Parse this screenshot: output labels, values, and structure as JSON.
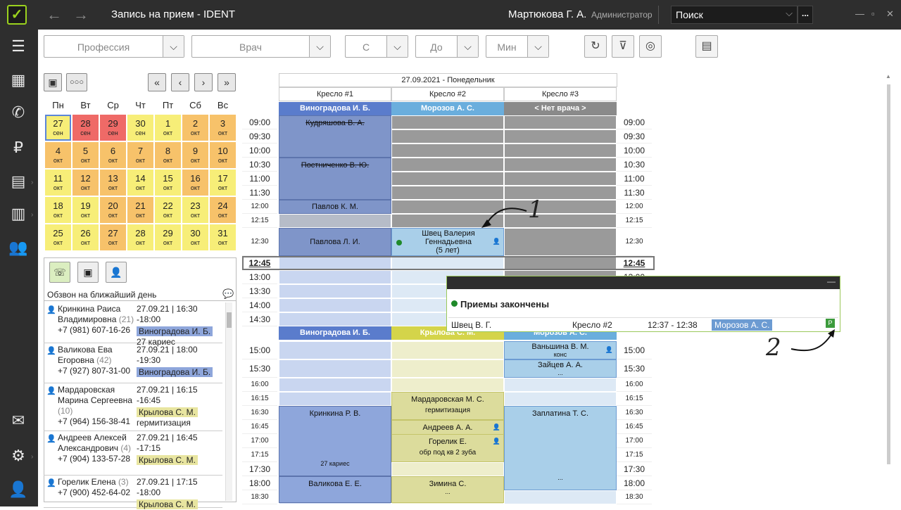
{
  "titlebar": {
    "title": "Запись на прием  -  IDENT",
    "user": "Мартюкова Г. А.",
    "role": "Администратор",
    "search": "Поиск",
    "dots": "..."
  },
  "filters": {
    "profession": "Профессия",
    "doctor": "Врач",
    "from": "С",
    "to": "До",
    "min": "Мин"
  },
  "calendar": {
    "weekdays": [
      "Пн",
      "Вт",
      "Ср",
      "Чт",
      "Пт",
      "Сб",
      "Вс"
    ],
    "days": [
      {
        "d": "27",
        "m": "сен",
        "c": "y"
      },
      {
        "d": "28",
        "m": "сен",
        "c": "r"
      },
      {
        "d": "29",
        "m": "сен",
        "c": "r"
      },
      {
        "d": "30",
        "m": "сен",
        "c": "y"
      },
      {
        "d": "1",
        "m": "окт",
        "c": "y"
      },
      {
        "d": "2",
        "m": "окт",
        "c": "o"
      },
      {
        "d": "3",
        "m": "окт",
        "c": "o"
      },
      {
        "d": "4",
        "m": "окт",
        "c": "o"
      },
      {
        "d": "5",
        "m": "окт",
        "c": "o"
      },
      {
        "d": "6",
        "m": "окт",
        "c": "o"
      },
      {
        "d": "7",
        "m": "окт",
        "c": "o"
      },
      {
        "d": "8",
        "m": "окт",
        "c": "o"
      },
      {
        "d": "9",
        "m": "окт",
        "c": "o"
      },
      {
        "d": "10",
        "m": "окт",
        "c": "o"
      },
      {
        "d": "11",
        "m": "окт",
        "c": "y"
      },
      {
        "d": "12",
        "m": "окт",
        "c": "o"
      },
      {
        "d": "13",
        "m": "окт",
        "c": "o"
      },
      {
        "d": "14",
        "m": "окт",
        "c": "y"
      },
      {
        "d": "15",
        "m": "окт",
        "c": "y"
      },
      {
        "d": "16",
        "m": "окт",
        "c": "o"
      },
      {
        "d": "17",
        "m": "окт",
        "c": "y"
      },
      {
        "d": "18",
        "m": "окт",
        "c": "y"
      },
      {
        "d": "19",
        "m": "окт",
        "c": "y"
      },
      {
        "d": "20",
        "m": "окт",
        "c": "o"
      },
      {
        "d": "21",
        "m": "окт",
        "c": "o"
      },
      {
        "d": "22",
        "m": "окт",
        "c": "y"
      },
      {
        "d": "23",
        "m": "окт",
        "c": "y"
      },
      {
        "d": "24",
        "m": "окт",
        "c": "o"
      },
      {
        "d": "25",
        "m": "окт",
        "c": "y"
      },
      {
        "d": "26",
        "m": "окт",
        "c": "y"
      },
      {
        "d": "27",
        "m": "окт",
        "c": "o"
      },
      {
        "d": "28",
        "m": "окт",
        "c": "y"
      },
      {
        "d": "29",
        "m": "окт",
        "c": "y"
      },
      {
        "d": "30",
        "m": "окт",
        "c": "y"
      },
      {
        "d": "31",
        "m": "окт",
        "c": "y"
      }
    ]
  },
  "calls": {
    "title": "Обзвон на ближайший день",
    "rows": [
      {
        "name": "Кринкина Раиса Владимировна",
        "age": "(21)",
        "phone": "+7 (981) 607-16-26",
        "date": "27.09.21",
        "time": "16:30 -18:00",
        "doctor": "Виноградова И. Б.",
        "dc": "b",
        "note": "27 кариес",
        "red": false
      },
      {
        "name": "Валикова Ева Егоровна",
        "age": "(42)",
        "phone": "+7 (927) 807-31-00",
        "date": "27.09.21",
        "time": "18:00 -19:30",
        "doctor": "Виноградова И. Б.",
        "dc": "b",
        "note": "",
        "red": false
      },
      {
        "name": "Мардаровская Марина Сергеевна",
        "age": "(10)",
        "phone": "+7 (964) 156-38-41",
        "date": "27.09.21",
        "time": "16:15 -16:45",
        "doctor": "Крылова С. М.",
        "dc": "y",
        "note": "гермитизация",
        "red": false
      },
      {
        "name": "Андреев Алексей Александрович",
        "age": "(4)",
        "phone": "+7 (904) 133-57-28",
        "date": "27.09.21",
        "time": "16:45 -17:15",
        "doctor": "Крылова С. М.",
        "dc": "y",
        "note": "",
        "red": true
      },
      {
        "name": "Горелик Елена",
        "age": "(3)",
        "phone": "+7 (900) 452-64-02",
        "date": "27.09.21",
        "time": "17:15 -18:00",
        "doctor": "Крылова С. М.",
        "dc": "y",
        "note": "",
        "red": true
      }
    ]
  },
  "schedule": {
    "date": "27.09.2021 - Понедельник",
    "chairs": [
      "Кресло #1",
      "Кресло #2",
      "Кресло #3"
    ],
    "doctors_top": [
      "Виноградова И. Б.",
      "Морозов А. С.",
      "< Нет врача >"
    ],
    "doctors_bottom": [
      "Виноградова И. Б.",
      "Крылова С. М.",
      "Морозов А. С."
    ],
    "times_top": [
      "09:00",
      "09:30",
      "10:00",
      "10:30",
      "11:00",
      "11:30",
      "12:00",
      "12:15",
      "12:30",
      "12:45",
      "13:00",
      "13:30",
      "14:00",
      "14:30"
    ],
    "times_bottom": [
      "15:00",
      "15:30",
      "16:00",
      "16:15",
      "16:30",
      "16:45",
      "17:00",
      "17:15",
      "17:30",
      "18:00",
      "18:30"
    ],
    "appts": {
      "a1": "Кудряшова В. А.",
      "a2": "Постниченко В. Ю.",
      "a3": "Павлов К. М.",
      "a4": "Павлова Л. И.",
      "a5": "Швец Валерия Геннадьевна",
      "a5b": "(5 лет)",
      "b1": "Ваньшина В. М.",
      "b1n": "конс",
      "b2": "Зайцев А. А.",
      "b2n": "...",
      "c1": "Мардаровская М. С.",
      "c1n": "гермитизация",
      "c2": "Андреев А. А.",
      "c3": "Горелик Е.",
      "c3n": "обр под кв 2 зуба",
      "c4": "Зимина С.",
      "c4n": "...",
      "d1": "Кринкина Р. В.",
      "d1n": "27 кариес",
      "d2": "Валикова Е. Е.",
      "e1": "Заплатина Т. С.",
      "e1n": "..."
    }
  },
  "notification": {
    "title": "Приемы закончены",
    "patient": "Швец В. Г.",
    "chair": "Кресло #2",
    "time": "12:37 - 12:38",
    "doctor": "Морозов А. С."
  },
  "annotations": {
    "one": "1",
    "two": "2"
  }
}
